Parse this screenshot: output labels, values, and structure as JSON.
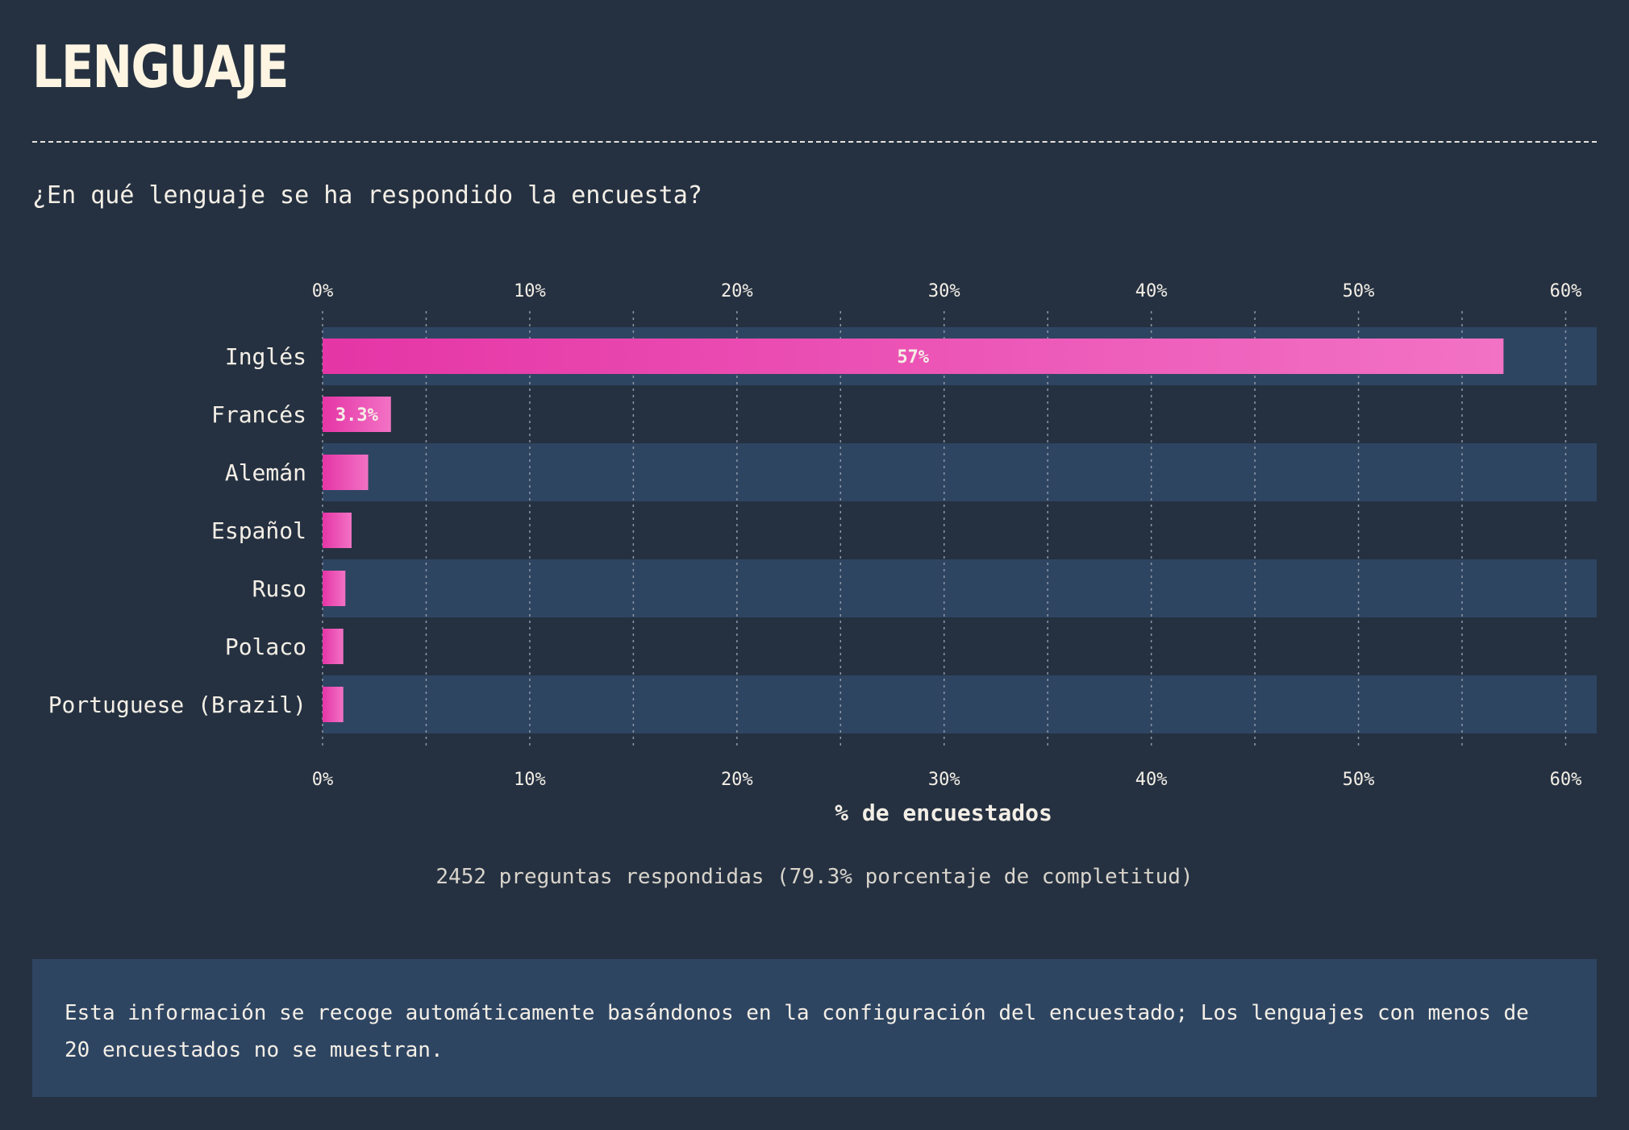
{
  "section": {
    "title": "LENGUAJE",
    "question": "¿En qué lenguaje se ha respondido la encuesta?"
  },
  "chart_data": {
    "type": "bar",
    "orientation": "horizontal",
    "categories": [
      "Inglés",
      "Francés",
      "Alemán",
      "Español",
      "Ruso",
      "Polaco",
      "Portuguese (Brazil)"
    ],
    "values": [
      57,
      3.3,
      2.2,
      1.4,
      1.1,
      1.0,
      1.0
    ],
    "value_labels": [
      "57%",
      "3.3%",
      "",
      "",
      "",
      "",
      ""
    ],
    "xlabel": "% de encuestados",
    "ylabel": "",
    "xlim": [
      0,
      61.5
    ],
    "xticks": [
      0,
      10,
      20,
      30,
      40,
      50,
      60
    ],
    "xtick_labels": [
      "0%",
      "10%",
      "20%",
      "30%",
      "40%",
      "50%",
      "60%"
    ],
    "grid": true,
    "tick_positions": "top-and-bottom",
    "colors": {
      "bar_start": "#e535a6",
      "bar_end": "#f272c5",
      "band": "#2e4562",
      "grid": "#8d97a6"
    }
  },
  "footer": {
    "answered": "2452 preguntas respondidas (79.3% porcentaje de completitud)",
    "note": "Esta información se recoge automáticamente basándonos en la configuración del encuestado; Los lenguajes con menos de 20 encuestados no se muestran."
  },
  "colors": {
    "background": "#253141",
    "title": "#fdf5e2",
    "text": "#f4efe6"
  }
}
